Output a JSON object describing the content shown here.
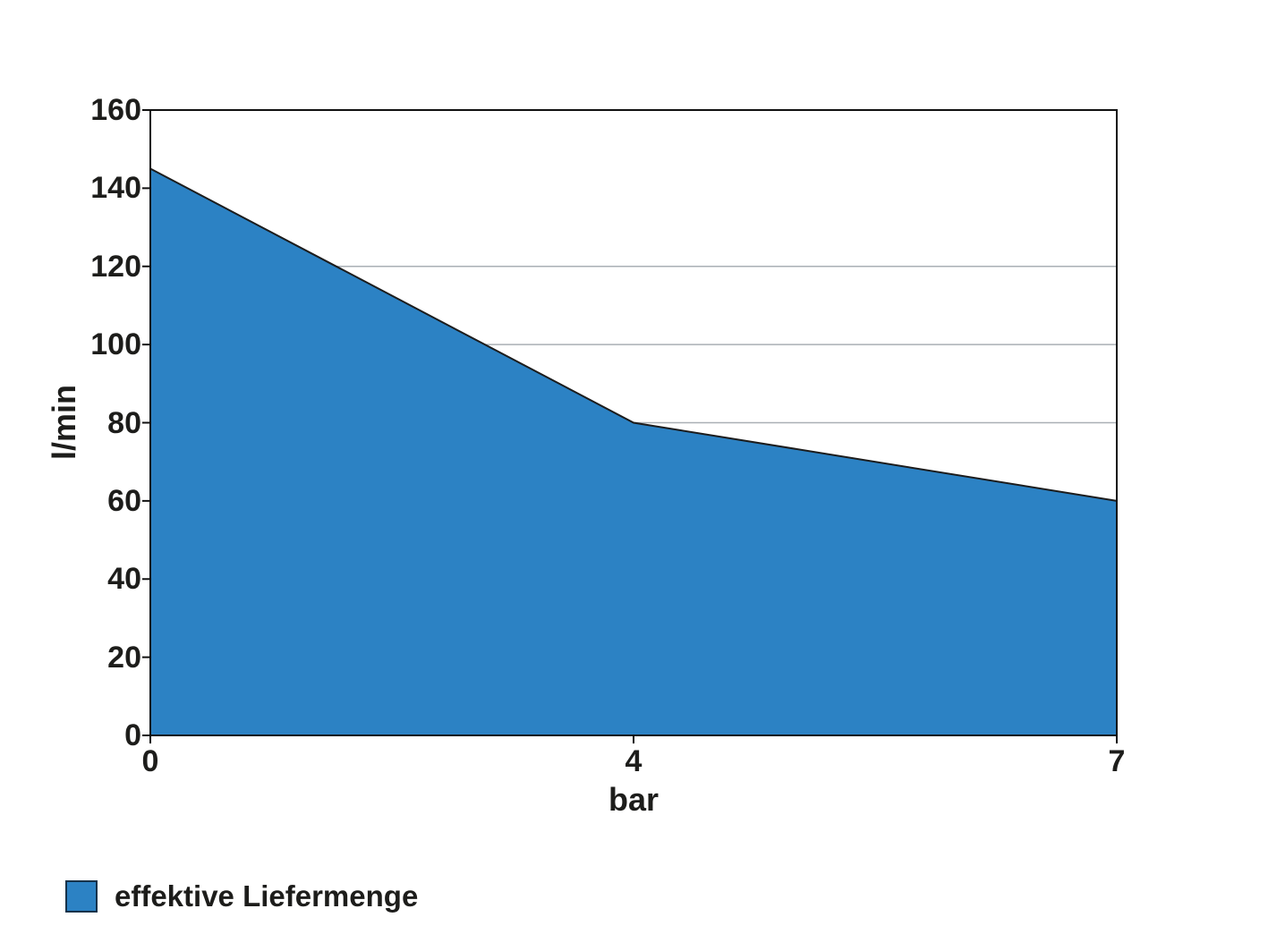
{
  "chart_data": {
    "type": "area",
    "title": "",
    "xlabel": "bar",
    "ylabel": "l/min",
    "x_axis_type": "category",
    "categories": [
      "0",
      "4",
      "7"
    ],
    "series": [
      {
        "name": "effektive Liefermenge",
        "values": [
          145,
          80,
          60
        ],
        "fill_color": "#2c82c4",
        "line_color": "#1c1c1c"
      }
    ],
    "ylim": [
      0,
      160
    ],
    "yticks": [
      0,
      20,
      40,
      60,
      80,
      100,
      120,
      140,
      160
    ],
    "gridline_values": [
      80,
      100,
      120
    ],
    "grid_on": true,
    "grid_color": "#a9afb5",
    "axis_color": "#111111",
    "text_color": "#1d1d1b",
    "legend_position": "bottom-left",
    "legend_entries": [
      "effektive Liefermenge"
    ]
  }
}
